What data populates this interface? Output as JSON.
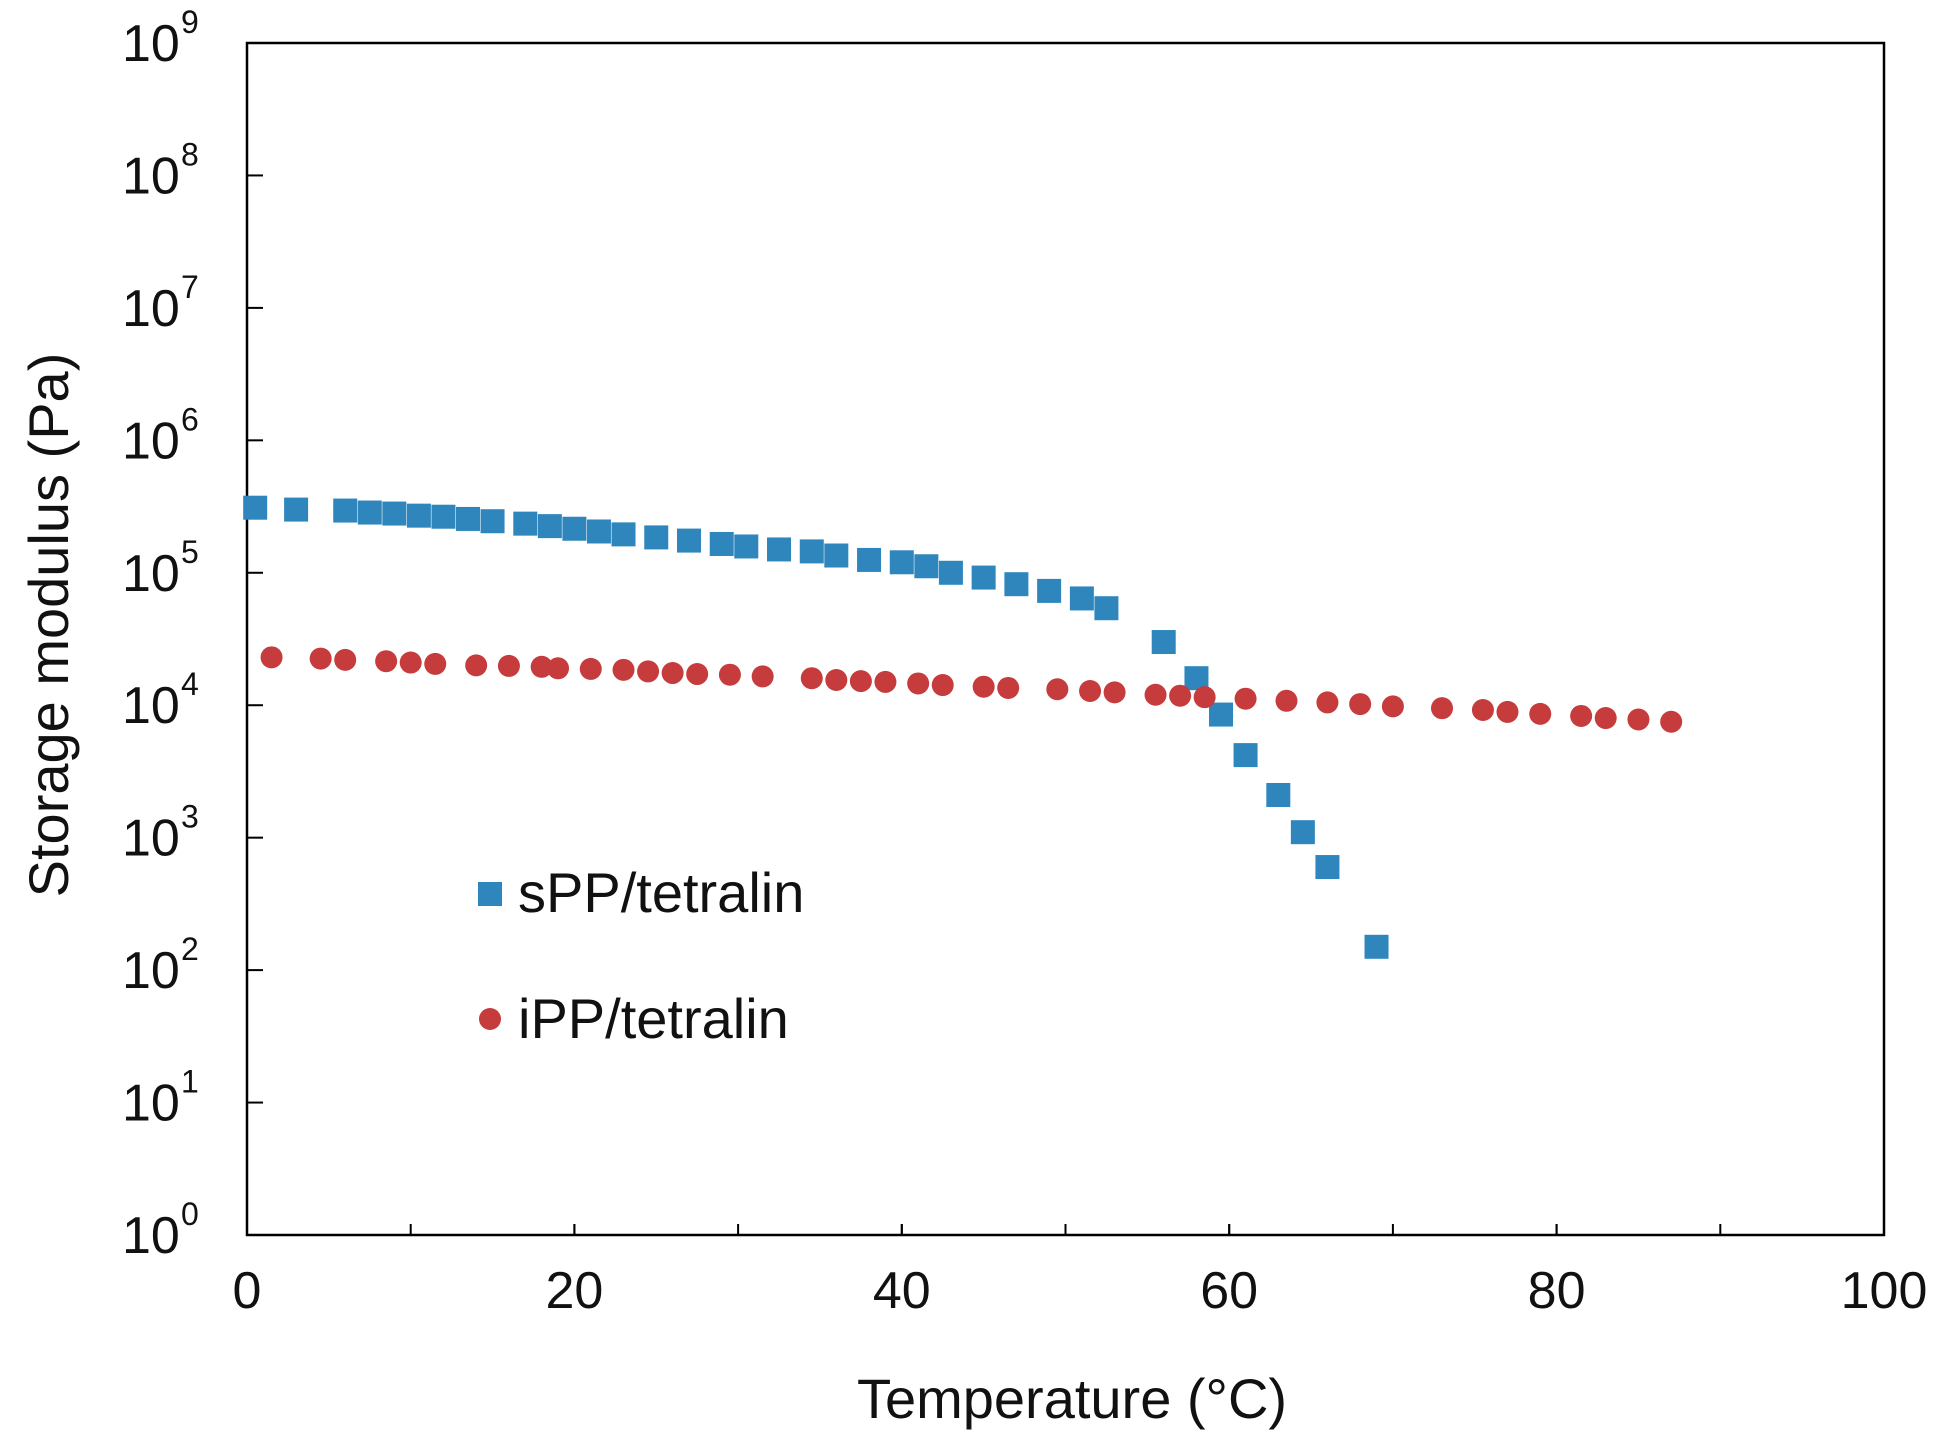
{
  "chart_data": {
    "type": "scatter",
    "title": "",
    "xlabel": "Temperature (°C)",
    "ylabel": "Storage modulus (Pa)",
    "xlim": [
      0,
      100
    ],
    "ylim_log10": [
      0,
      9
    ],
    "yscale": "log",
    "grid": false,
    "legend_position": "lower-left",
    "x_ticks": [
      "0",
      "20",
      "40",
      "60",
      "80",
      "100"
    ],
    "x_tick_values": [
      0,
      20,
      40,
      60,
      80,
      100
    ],
    "y_ticks": [
      {
        "base": "10",
        "exp": "0"
      },
      {
        "base": "10",
        "exp": "1"
      },
      {
        "base": "10",
        "exp": "2"
      },
      {
        "base": "10",
        "exp": "3"
      },
      {
        "base": "10",
        "exp": "4"
      },
      {
        "base": "10",
        "exp": "5"
      },
      {
        "base": "10",
        "exp": "6"
      },
      {
        "base": "10",
        "exp": "7"
      },
      {
        "base": "10",
        "exp": "8"
      },
      {
        "base": "10",
        "exp": "9"
      }
    ],
    "series": [
      {
        "name": "sPP/tetralin",
        "marker": "square",
        "color": "#2e86bd",
        "x": [
          0.5,
          3,
          6,
          7.5,
          9,
          10.5,
          12,
          13.5,
          15,
          17,
          18.5,
          20,
          21.5,
          23,
          25,
          27,
          29,
          30.5,
          32.5,
          34.5,
          36,
          38,
          40,
          41.5,
          43,
          45,
          47,
          49,
          51,
          52.5,
          56,
          58,
          59.5,
          61,
          63,
          64.5,
          66,
          69
        ],
        "y": [
          310000,
          300000,
          295000,
          285000,
          280000,
          270000,
          265000,
          255000,
          245000,
          235000,
          225000,
          215000,
          205000,
          195000,
          185000,
          175000,
          165000,
          158000,
          150000,
          145000,
          135000,
          125000,
          120000,
          112000,
          100000,
          92000,
          82000,
          73000,
          64000,
          54000,
          30000,
          16000,
          8500,
          4200,
          2100,
          1100,
          600,
          150
        ]
      },
      {
        "name": "iPP/tetralin",
        "marker": "circle",
        "color": "#c63b3b",
        "x": [
          1.5,
          4.5,
          6,
          8.5,
          10,
          11.5,
          14,
          16,
          18,
          19,
          21,
          23,
          24.5,
          26,
          27.5,
          29.5,
          31.5,
          34.5,
          36,
          37.5,
          39,
          41,
          42.5,
          45,
          46.5,
          49.5,
          51.5,
          53,
          55.5,
          57,
          58.5,
          61,
          63.5,
          66,
          68,
          70,
          73,
          75.5,
          77,
          79,
          81.5,
          83,
          85,
          87
        ],
        "y": [
          23000,
          22500,
          22000,
          21500,
          21000,
          20500,
          20000,
          19800,
          19500,
          19000,
          18800,
          18500,
          18000,
          17500,
          17200,
          17000,
          16500,
          16000,
          15500,
          15200,
          15000,
          14600,
          14200,
          13800,
          13500,
          13200,
          12800,
          12500,
          12000,
          11800,
          11500,
          11200,
          10800,
          10500,
          10200,
          9800,
          9500,
          9200,
          8900,
          8600,
          8300,
          8000,
          7800,
          7500
        ]
      }
    ]
  }
}
